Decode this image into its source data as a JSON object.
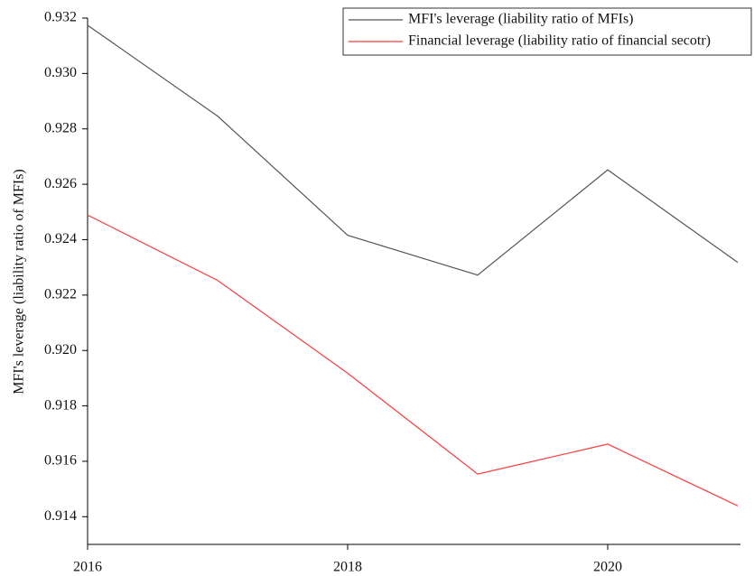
{
  "chart_data": {
    "type": "line",
    "y_label": "MFI's leverage (liability ratio of MFIs)",
    "x": [
      2016,
      2017,
      2018,
      2019,
      2020,
      2021
    ],
    "series": [
      {
        "name": "MFI's leverage (liability ratio of MFIs)",
        "color": "#555555",
        "values": [
          0.93174,
          0.92846,
          0.92416,
          0.92272,
          0.92652,
          0.92318
        ]
      },
      {
        "name": "Financial leverage (liability ratio of financial secotr)",
        "color": "#ff3b3b",
        "values": [
          0.92489,
          0.92253,
          0.91918,
          0.91554,
          0.91662,
          0.91439
        ]
      }
    ],
    "xlim": [
      2016,
      2021
    ],
    "xticks": [
      2016,
      2018,
      2020
    ],
    "ylim": [
      0.913,
      0.932
    ],
    "yticks": [
      0.914,
      0.916,
      0.918,
      {
        "value": 0.92,
        "label": "0.920"
      },
      0.922,
      0.924,
      0.926,
      0.928,
      {
        "value": 0.93,
        "label": "0.930"
      },
      0.932
    ],
    "legend": "top-right"
  }
}
